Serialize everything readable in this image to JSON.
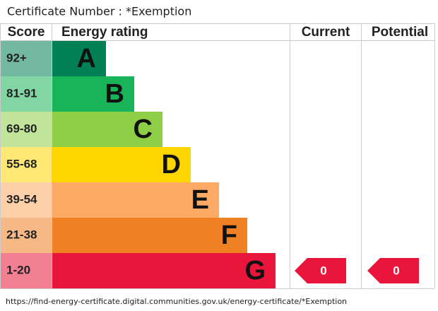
{
  "header": {
    "title": "Certificate Number : *Exemption"
  },
  "table": {
    "columns": [
      "Score",
      "Energy rating",
      "Current",
      "Potential"
    ],
    "rows": [
      {
        "score": "92+",
        "rating": "A",
        "color": "#008054"
      },
      {
        "score": "81-91",
        "rating": "B",
        "color": "#19b459"
      },
      {
        "score": "69-80",
        "rating": "C",
        "color": "#8dce46"
      },
      {
        "score": "55-68",
        "rating": "D",
        "color": "#ffd500"
      },
      {
        "score": "39-54",
        "rating": "E",
        "color": "#fcaa65"
      },
      {
        "score": "21-38",
        "rating": "F",
        "color": "#ef8023"
      },
      {
        "score": "1-20",
        "rating": "G",
        "color": "#e9153b"
      }
    ],
    "current": 0,
    "potential": 0,
    "indicator_color": "#e9153b"
  },
  "footer": {
    "url": "https://find-energy-certificate.digital.communities.gov.uk/energy-certificate/*Exemption"
  }
}
